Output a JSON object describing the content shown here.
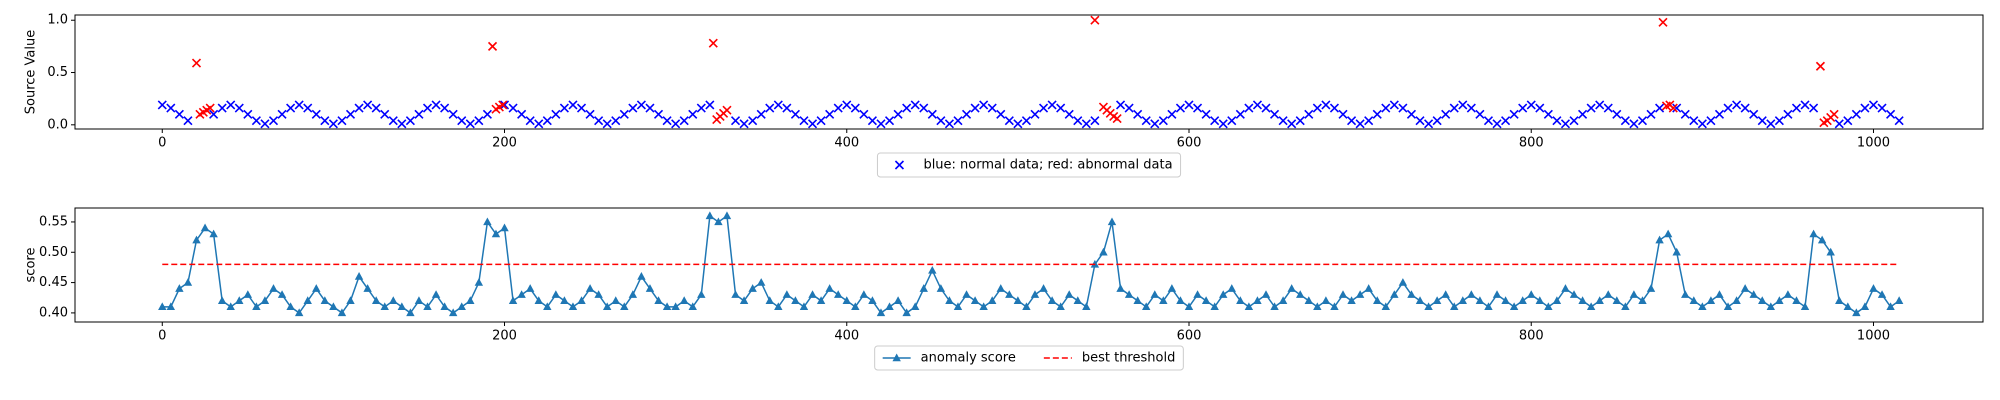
{
  "chart_data": [
    {
      "type": "scatter",
      "y_label": "Source Value",
      "x": [
        0,
        5,
        10,
        15,
        20,
        25,
        30,
        35,
        40,
        45,
        50,
        55,
        60,
        65,
        70,
        75,
        80,
        85,
        90,
        95,
        100,
        105,
        110,
        115,
        120,
        125,
        130,
        135,
        140,
        145,
        150,
        155,
        160,
        165,
        170,
        175,
        180,
        185,
        190,
        195,
        200,
        205,
        210,
        215,
        220,
        225,
        230,
        235,
        240,
        245,
        250,
        255,
        260,
        265,
        270,
        275,
        280,
        285,
        290,
        295,
        300,
        305,
        310,
        315,
        320,
        325,
        330,
        335,
        340,
        345,
        350,
        355,
        360,
        365,
        370,
        375,
        380,
        385,
        390,
        395,
        400,
        405,
        410,
        415,
        420,
        425,
        430,
        435,
        440,
        445,
        450,
        455,
        460,
        465,
        470,
        475,
        480,
        485,
        490,
        495,
        500,
        505,
        510,
        515,
        520,
        525,
        530,
        535,
        540,
        545,
        550,
        555,
        560,
        565,
        570,
        575,
        580,
        585,
        590,
        595,
        600,
        605,
        610,
        615,
        620,
        625,
        630,
        635,
        640,
        645,
        650,
        655,
        660,
        665,
        670,
        675,
        680,
        685,
        690,
        695,
        700,
        705,
        710,
        715,
        720,
        725,
        730,
        735,
        740,
        745,
        750,
        755,
        760,
        765,
        770,
        775,
        780,
        785,
        790,
        795,
        800,
        805,
        810,
        815,
        820,
        825,
        830,
        835,
        840,
        845,
        850,
        855,
        860,
        865,
        870,
        875,
        880,
        885,
        890,
        895,
        900,
        905,
        910,
        915,
        920,
        925,
        930,
        935,
        940,
        945,
        950,
        955,
        960,
        965,
        970,
        975,
        980,
        985,
        990,
        995,
        1000,
        1005,
        1010,
        1015
      ],
      "series": [
        {
          "name": "blue: normal data; red: abnormal data",
          "color": "#0000ff",
          "marker": "x",
          "values": [
            0.19,
            0.16,
            0.1,
            0.04,
            null,
            null,
            0.1,
            0.16,
            0.19,
            0.16,
            0.1,
            0.04,
            0.01,
            0.04,
            0.1,
            0.16,
            0.19,
            0.16,
            0.1,
            0.04,
            0.01,
            0.04,
            0.1,
            0.16,
            0.19,
            0.16,
            0.1,
            0.04,
            0.01,
            0.04,
            0.1,
            0.16,
            0.19,
            0.16,
            0.1,
            0.04,
            0.01,
            0.04,
            0.1,
            null,
            0.19,
            0.16,
            0.1,
            0.04,
            0.01,
            0.04,
            0.1,
            0.16,
            0.19,
            0.16,
            0.1,
            0.04,
            0.01,
            0.04,
            0.1,
            0.16,
            0.19,
            0.16,
            0.1,
            0.04,
            0.01,
            0.04,
            0.1,
            0.16,
            0.19,
            null,
            null,
            0.04,
            0.01,
            0.04,
            0.1,
            0.16,
            0.19,
            0.16,
            0.1,
            0.04,
            0.01,
            0.04,
            0.1,
            0.16,
            0.19,
            0.16,
            0.1,
            0.04,
            0.01,
            0.04,
            0.1,
            0.16,
            0.19,
            0.16,
            0.1,
            0.04,
            0.01,
            0.04,
            0.1,
            0.16,
            0.19,
            0.16,
            0.1,
            0.04,
            0.01,
            0.04,
            0.1,
            0.16,
            0.19,
            0.16,
            0.1,
            0.04,
            0.01,
            0.04,
            null,
            null,
            0.19,
            0.16,
            0.1,
            0.04,
            0.01,
            0.04,
            0.1,
            0.16,
            0.19,
            0.16,
            0.1,
            0.04,
            0.01,
            0.04,
            0.1,
            0.16,
            0.19,
            0.16,
            0.1,
            0.04,
            0.01,
            0.04,
            0.1,
            0.16,
            0.19,
            0.16,
            0.1,
            0.04,
            0.01,
            0.04,
            0.1,
            0.16,
            0.19,
            0.16,
            0.1,
            0.04,
            0.01,
            0.04,
            0.1,
            0.16,
            0.19,
            0.16,
            0.1,
            0.04,
            0.01,
            0.04,
            0.1,
            0.16,
            0.19,
            0.16,
            0.1,
            0.04,
            0.01,
            0.04,
            0.1,
            0.16,
            0.19,
            0.16,
            0.1,
            0.04,
            0.01,
            0.04,
            0.1,
            0.16,
            null,
            0.16,
            0.1,
            0.04,
            0.01,
            0.04,
            0.1,
            0.16,
            0.19,
            0.16,
            0.1,
            0.04,
            0.01,
            0.04,
            0.1,
            0.16,
            0.19,
            0.16,
            null,
            null,
            0.01,
            0.04,
            0.1,
            0.16,
            0.19,
            0.16,
            0.1,
            0.04
          ]
        },
        {
          "color": "#ff0000",
          "marker": "x",
          "x": [
            20,
            22,
            24,
            26,
            28,
            193,
            195,
            197,
            199,
            322,
            324,
            326,
            328,
            330,
            545,
            550,
            552,
            554,
            556,
            558,
            877,
            879,
            881,
            883,
            969,
            971,
            973,
            975,
            977
          ],
          "values": [
            0.59,
            0.1,
            0.12,
            0.14,
            0.16,
            0.75,
            0.15,
            0.17,
            0.19,
            0.78,
            0.05,
            0.08,
            0.11,
            0.14,
            1.0,
            0.17,
            0.14,
            0.11,
            0.08,
            0.06,
            0.98,
            0.18,
            0.19,
            0.16,
            0.56,
            0.02,
            0.04,
            0.07,
            0.1
          ]
        }
      ],
      "xlim": [
        -51,
        1064
      ],
      "xticks": [
        0,
        200,
        400,
        600,
        800,
        1000
      ],
      "ylim": [
        -0.04,
        1.05
      ],
      "yticks": [
        {
          "value": 0,
          "label": "0.0"
        },
        {
          "value": 0.5,
          "label": "0.5"
        },
        {
          "value": 1,
          "label": "1.0"
        }
      ],
      "legend": "below"
    },
    {
      "type": "line",
      "y_label": "score",
      "x": [
        0,
        5,
        10,
        15,
        20,
        25,
        30,
        35,
        40,
        45,
        50,
        55,
        60,
        65,
        70,
        75,
        80,
        85,
        90,
        95,
        100,
        105,
        110,
        115,
        120,
        125,
        130,
        135,
        140,
        145,
        150,
        155,
        160,
        165,
        170,
        175,
        180,
        185,
        190,
        195,
        200,
        205,
        210,
        215,
        220,
        225,
        230,
        235,
        240,
        245,
        250,
        255,
        260,
        265,
        270,
        275,
        280,
        285,
        290,
        295,
        300,
        305,
        310,
        315,
        320,
        325,
        330,
        335,
        340,
        345,
        350,
        355,
        360,
        365,
        370,
        375,
        380,
        385,
        390,
        395,
        400,
        405,
        410,
        415,
        420,
        425,
        430,
        435,
        440,
        445,
        450,
        455,
        460,
        465,
        470,
        475,
        480,
        485,
        490,
        495,
        500,
        505,
        510,
        515,
        520,
        525,
        530,
        535,
        540,
        545,
        550,
        555,
        560,
        565,
        570,
        575,
        580,
        585,
        590,
        595,
        600,
        605,
        610,
        615,
        620,
        625,
        630,
        635,
        640,
        645,
        650,
        655,
        660,
        665,
        670,
        675,
        680,
        685,
        690,
        695,
        700,
        705,
        710,
        715,
        720,
        725,
        730,
        735,
        740,
        745,
        750,
        755,
        760,
        765,
        770,
        775,
        780,
        785,
        790,
        795,
        800,
        805,
        810,
        815,
        820,
        825,
        830,
        835,
        840,
        845,
        850,
        855,
        860,
        865,
        870,
        875,
        880,
        885,
        890,
        895,
        900,
        905,
        910,
        915,
        920,
        925,
        930,
        935,
        940,
        945,
        950,
        955,
        960,
        965,
        970,
        975,
        980,
        985,
        990,
        995,
        1000,
        1005,
        1010,
        1015
      ],
      "series": [
        {
          "name": "anomaly score",
          "color": "#1f77b4",
          "marker": "^",
          "values": [
            0.41,
            0.41,
            0.44,
            0.45,
            0.52,
            0.54,
            0.53,
            0.42,
            0.41,
            0.42,
            0.43,
            0.41,
            0.42,
            0.44,
            0.43,
            0.41,
            0.4,
            0.42,
            0.44,
            0.42,
            0.41,
            0.4,
            0.42,
            0.46,
            0.44,
            0.42,
            0.41,
            0.42,
            0.41,
            0.4,
            0.42,
            0.41,
            0.43,
            0.41,
            0.4,
            0.41,
            0.42,
            0.45,
            0.55,
            0.53,
            0.54,
            0.42,
            0.43,
            0.44,
            0.42,
            0.41,
            0.43,
            0.42,
            0.41,
            0.42,
            0.44,
            0.43,
            0.41,
            0.42,
            0.41,
            0.43,
            0.46,
            0.44,
            0.42,
            0.41,
            0.41,
            0.42,
            0.41,
            0.43,
            0.56,
            0.55,
            0.56,
            0.43,
            0.42,
            0.44,
            0.45,
            0.42,
            0.41,
            0.43,
            0.42,
            0.41,
            0.43,
            0.42,
            0.44,
            0.43,
            0.42,
            0.41,
            0.43,
            0.42,
            0.4,
            0.41,
            0.42,
            0.4,
            0.41,
            0.44,
            0.47,
            0.44,
            0.42,
            0.41,
            0.43,
            0.42,
            0.41,
            0.42,
            0.44,
            0.43,
            0.42,
            0.41,
            0.43,
            0.44,
            0.42,
            0.41,
            0.43,
            0.42,
            0.41,
            0.48,
            0.5,
            0.55,
            0.44,
            0.43,
            0.42,
            0.41,
            0.43,
            0.42,
            0.44,
            0.42,
            0.41,
            0.43,
            0.42,
            0.41,
            0.43,
            0.44,
            0.42,
            0.41,
            0.42,
            0.43,
            0.41,
            0.42,
            0.44,
            0.43,
            0.42,
            0.41,
            0.42,
            0.41,
            0.43,
            0.42,
            0.43,
            0.44,
            0.42,
            0.41,
            0.43,
            0.45,
            0.43,
            0.42,
            0.41,
            0.42,
            0.43,
            0.41,
            0.42,
            0.43,
            0.42,
            0.41,
            0.43,
            0.42,
            0.41,
            0.42,
            0.43,
            0.42,
            0.41,
            0.42,
            0.44,
            0.43,
            0.42,
            0.41,
            0.42,
            0.43,
            0.42,
            0.41,
            0.43,
            0.42,
            0.44,
            0.52,
            0.53,
            0.5,
            0.43,
            0.42,
            0.41,
            0.42,
            0.43,
            0.41,
            0.42,
            0.44,
            0.43,
            0.42,
            0.41,
            0.42,
            0.43,
            0.42,
            0.41,
            0.53,
            0.52,
            0.5,
            0.42,
            0.41,
            0.4,
            0.41,
            0.44,
            0.43,
            0.41,
            0.42
          ]
        },
        {
          "name": "best threshold",
          "color": "#ff0000",
          "linestyle": "dashed",
          "x": [
            0,
            1015
          ],
          "values": [
            0.48,
            0.48
          ]
        }
      ],
      "xlim": [
        -51,
        1064
      ],
      "xticks": [
        0,
        200,
        400,
        600,
        800,
        1000
      ],
      "ylim": [
        0.385,
        0.573
      ],
      "yticks": [
        {
          "value": 0.4,
          "label": "0.40"
        },
        0.45,
        {
          "value": 0.5,
          "label": "0.50"
        },
        0.55
      ],
      "legend": "below"
    }
  ]
}
